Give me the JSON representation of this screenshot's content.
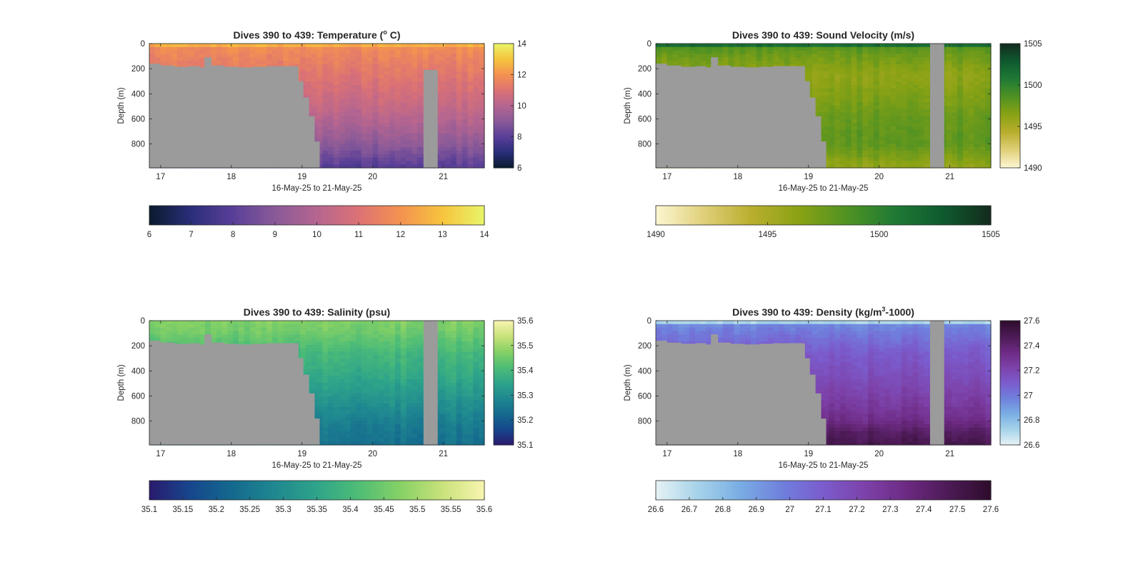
{
  "figure": {
    "background": "#ffffff",
    "mask_color": "#9b9b9b"
  },
  "chart_data": [
    {
      "type": "heatmap",
      "title_main": "Dives 390 to 439: Temperature (",
      "title_sup": "o",
      "title_post": " C)",
      "xlabel": "16-May-25 to 21-May-25",
      "ylabel": "Depth (m)",
      "xlim": [
        16.84,
        21.58
      ],
      "ylim": [
        0,
        990
      ],
      "xticks": [
        17,
        18,
        19,
        20,
        21
      ],
      "xtick_labels": [
        "17",
        "18",
        "19",
        "20",
        "21"
      ],
      "yticks": [
        0,
        200,
        400,
        600,
        800
      ],
      "ytick_labels": [
        "0",
        "200",
        "400",
        "600",
        "800"
      ],
      "clim": [
        6,
        14
      ],
      "side_cbar_ticks": [
        "6",
        "8",
        "10",
        "12",
        "14"
      ],
      "side_cbar_values": [
        6,
        8,
        10,
        12,
        14
      ],
      "bottom_cbar_ticks": [
        "6",
        "7",
        "8",
        "9",
        "10",
        "11",
        "12",
        "13",
        "14"
      ],
      "bottom_cbar_values": [
        6,
        7,
        8,
        9,
        10,
        11,
        12,
        13,
        14
      ],
      "colormap": [
        "#0b1b2e",
        "#2a2e7a",
        "#5a3f98",
        "#8a5a98",
        "#b56590",
        "#dc7274",
        "#f49250",
        "#f6c43e",
        "#e8f568"
      ],
      "surface_value": 12.6,
      "surface_depth": 40,
      "profile": [
        [
          0,
          11.9
        ],
        [
          100,
          11.6
        ],
        [
          300,
          11.0
        ],
        [
          500,
          10.4
        ],
        [
          700,
          9.6
        ],
        [
          850,
          8.8
        ],
        [
          990,
          7.9
        ]
      ],
      "bathymetry": [
        [
          16.84,
          160
        ],
        [
          17.0,
          175
        ],
        [
          17.2,
          185
        ],
        [
          17.4,
          180
        ],
        [
          17.55,
          190
        ],
        [
          17.62,
          110
        ],
        [
          17.72,
          175
        ],
        [
          17.9,
          185
        ],
        [
          18.1,
          190
        ],
        [
          18.3,
          185
        ],
        [
          18.5,
          180
        ],
        [
          18.7,
          180
        ],
        [
          18.9,
          180
        ],
        [
          18.95,
          300
        ],
        [
          19.02,
          430
        ],
        [
          19.1,
          580
        ],
        [
          19.18,
          780
        ],
        [
          19.25,
          990
        ]
      ],
      "gap": [
        20.72,
        20.92,
        210
      ]
    },
    {
      "type": "heatmap",
      "title_main": "Dives 390 to 439: Sound Velocity (m/s)",
      "title_sup": "",
      "title_post": "",
      "xlabel": "16-May-25 to 21-May-25",
      "ylabel": "Depth (m)",
      "xlim": [
        16.84,
        21.58
      ],
      "ylim": [
        0,
        990
      ],
      "xticks": [
        17,
        18,
        19,
        20,
        21
      ],
      "xtick_labels": [
        "17",
        "18",
        "19",
        "20",
        "21"
      ],
      "yticks": [
        0,
        200,
        400,
        600,
        800
      ],
      "ytick_labels": [
        "0",
        "200",
        "400",
        "600",
        "800"
      ],
      "clim": [
        1490,
        1505
      ],
      "side_cbar_ticks": [
        "1490",
        "1495",
        "1500",
        "1505"
      ],
      "side_cbar_values": [
        1490,
        1495,
        1500,
        1505
      ],
      "bottom_cbar_ticks": [
        "1490",
        "1495",
        "1500",
        "1505"
      ],
      "bottom_cbar_values": [
        1490,
        1495,
        1500,
        1505
      ],
      "colormap": [
        "#fdf6d2",
        "#e0d07a",
        "#b9ae2e",
        "#8aa214",
        "#4f9223",
        "#1f7a35",
        "#0f5a2f",
        "#132b1e"
      ],
      "surface_value": 1501.5,
      "surface_depth": 20,
      "profile": [
        [
          0,
          1498.8
        ],
        [
          100,
          1497.4
        ],
        [
          250,
          1496.2
        ],
        [
          400,
          1496.8
        ],
        [
          600,
          1497.8
        ],
        [
          800,
          1498.1
        ],
        [
          900,
          1497.0
        ],
        [
          990,
          1496.0
        ]
      ],
      "bathymetry": [
        [
          16.84,
          160
        ],
        [
          17.0,
          175
        ],
        [
          17.2,
          185
        ],
        [
          17.4,
          180
        ],
        [
          17.55,
          190
        ],
        [
          17.62,
          110
        ],
        [
          17.72,
          175
        ],
        [
          17.9,
          185
        ],
        [
          18.1,
          190
        ],
        [
          18.3,
          185
        ],
        [
          18.5,
          180
        ],
        [
          18.7,
          180
        ],
        [
          18.9,
          180
        ],
        [
          18.95,
          300
        ],
        [
          19.02,
          430
        ],
        [
          19.1,
          580
        ],
        [
          19.18,
          780
        ],
        [
          19.25,
          990
        ]
      ],
      "gap": [
        20.72,
        20.92,
        0
      ]
    },
    {
      "type": "heatmap",
      "title_main": "Dives 390 to 439: Salinity (psu)",
      "title_sup": "",
      "title_post": "",
      "xlabel": "16-May-25 to 21-May-25",
      "ylabel": "Depth (m)",
      "xlim": [
        16.84,
        21.58
      ],
      "ylim": [
        0,
        990
      ],
      "xticks": [
        17,
        18,
        19,
        20,
        21
      ],
      "xtick_labels": [
        "17",
        "18",
        "19",
        "20",
        "21"
      ],
      "yticks": [
        0,
        200,
        400,
        600,
        800
      ],
      "ytick_labels": [
        "0",
        "200",
        "400",
        "600",
        "800"
      ],
      "clim": [
        35.1,
        35.6
      ],
      "side_cbar_ticks": [
        "35.1",
        "35.2",
        "35.3",
        "35.4",
        "35.5",
        "35.6"
      ],
      "side_cbar_values": [
        35.1,
        35.2,
        35.3,
        35.4,
        35.5,
        35.6
      ],
      "bottom_cbar_ticks": [
        "35.1",
        "35.15",
        "35.2",
        "35.25",
        "35.3",
        "35.35",
        "35.4",
        "35.45",
        "35.5",
        "35.55",
        "35.6"
      ],
      "bottom_cbar_values": [
        35.1,
        35.15,
        35.2,
        35.25,
        35.3,
        35.35,
        35.4,
        35.45,
        35.5,
        35.55,
        35.6
      ],
      "colormap": [
        "#2a1a6e",
        "#16478d",
        "#146a8e",
        "#1f8890",
        "#2ea48a",
        "#4fbd76",
        "#86d165",
        "#c9e27b",
        "#f9f5b0"
      ],
      "surface_value": 35.46,
      "surface_depth": 0,
      "profile": [
        [
          0,
          35.47
        ],
        [
          100,
          35.45
        ],
        [
          250,
          35.4
        ],
        [
          450,
          35.36
        ],
        [
          650,
          35.31
        ],
        [
          850,
          35.26
        ],
        [
          990,
          35.24
        ]
      ],
      "bathymetry": [
        [
          16.84,
          160
        ],
        [
          17.0,
          175
        ],
        [
          17.2,
          185
        ],
        [
          17.4,
          180
        ],
        [
          17.55,
          190
        ],
        [
          17.62,
          110
        ],
        [
          17.72,
          175
        ],
        [
          17.9,
          185
        ],
        [
          18.1,
          190
        ],
        [
          18.3,
          185
        ],
        [
          18.5,
          180
        ],
        [
          18.7,
          180
        ],
        [
          18.9,
          180
        ],
        [
          18.95,
          300
        ],
        [
          19.02,
          430
        ],
        [
          19.1,
          580
        ],
        [
          19.18,
          780
        ],
        [
          19.25,
          990
        ]
      ],
      "gap": [
        20.72,
        20.92,
        0
      ]
    },
    {
      "type": "heatmap",
      "title_main": "Dives 390 to 439: Density (kg/m",
      "title_sup": "3",
      "title_post": "-1000)",
      "xlabel": "16-May-25 to 21-May-25",
      "ylabel": "Depth (m)",
      "xlim": [
        16.84,
        21.58
      ],
      "ylim": [
        0,
        990
      ],
      "xticks": [
        17,
        18,
        19,
        20,
        21
      ],
      "xtick_labels": [
        "17",
        "18",
        "19",
        "20",
        "21"
      ],
      "yticks": [
        0,
        200,
        400,
        600,
        800
      ],
      "ytick_labels": [
        "0",
        "200",
        "400",
        "600",
        "800"
      ],
      "clim": [
        26.6,
        27.6
      ],
      "side_cbar_ticks": [
        "26.6",
        "26.8",
        "27",
        "27.2",
        "27.4",
        "27.6"
      ],
      "side_cbar_values": [
        26.6,
        26.8,
        27.0,
        27.2,
        27.4,
        27.6
      ],
      "bottom_cbar_ticks": [
        "26.6",
        "26.7",
        "26.8",
        "26.9",
        "27",
        "27.1",
        "27.2",
        "27.3",
        "27.4",
        "27.5",
        "27.6"
      ],
      "bottom_cbar_values": [
        26.6,
        26.7,
        26.8,
        26.9,
        27.0,
        27.1,
        27.2,
        27.3,
        27.4,
        27.5,
        27.6
      ],
      "colormap": [
        "#e6f2f4",
        "#a6d3ea",
        "#7aaee4",
        "#6f80dc",
        "#7b5ccd",
        "#7d42a9",
        "#6c2a82",
        "#4c1a55",
        "#2e0c2c"
      ],
      "surface_value": 26.72,
      "surface_depth": 20,
      "profile": [
        [
          0,
          26.92
        ],
        [
          100,
          27.0
        ],
        [
          250,
          27.1
        ],
        [
          450,
          27.17
        ],
        [
          650,
          27.25
        ],
        [
          800,
          27.33
        ],
        [
          900,
          27.45
        ],
        [
          990,
          27.5
        ]
      ],
      "bathymetry": [
        [
          16.84,
          160
        ],
        [
          17.0,
          175
        ],
        [
          17.2,
          185
        ],
        [
          17.4,
          180
        ],
        [
          17.55,
          190
        ],
        [
          17.62,
          110
        ],
        [
          17.72,
          175
        ],
        [
          17.9,
          185
        ],
        [
          18.1,
          190
        ],
        [
          18.3,
          185
        ],
        [
          18.5,
          180
        ],
        [
          18.7,
          180
        ],
        [
          18.9,
          180
        ],
        [
          18.95,
          300
        ],
        [
          19.02,
          430
        ],
        [
          19.1,
          580
        ],
        [
          19.18,
          780
        ],
        [
          19.25,
          990
        ]
      ],
      "gap": [
        20.72,
        20.92,
        0
      ]
    }
  ]
}
